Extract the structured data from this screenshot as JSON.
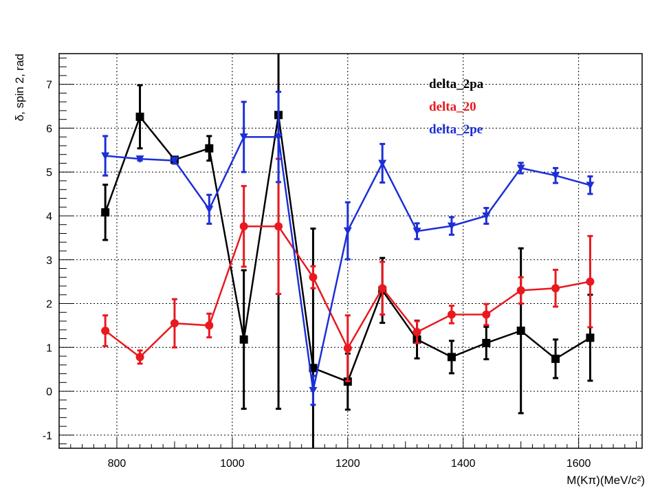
{
  "chart_data": {
    "type": "line",
    "xlabel": "M(Kπ)(MeV/c²)",
    "ylabel": "δ, spin 2, rad",
    "xlim": [
      700,
      1710
    ],
    "ylim": [
      -1.3,
      7.7
    ],
    "grid": true,
    "legend_position": "top-right",
    "x_ticks": [
      "800",
      "1000",
      "1200",
      "1400",
      "1600"
    ],
    "y_ticks": [
      "-1",
      "0",
      "1",
      "2",
      "3",
      "4",
      "5",
      "6",
      "7"
    ],
    "series": [
      {
        "name": "delta_2pa",
        "color": "#000000",
        "marker": "square",
        "x": [
          780,
          840,
          900,
          960,
          1020,
          1080,
          1140,
          1200,
          1260,
          1320,
          1380,
          1440,
          1500,
          1560,
          1620
        ],
        "y": [
          4.08,
          6.26,
          5.28,
          5.54,
          1.18,
          6.3,
          0.53,
          0.22,
          2.3,
          1.18,
          0.78,
          1.1,
          1.38,
          0.74,
          1.22
        ],
        "err": [
          0.63,
          0.72,
          0.05,
          0.28,
          1.58,
          6.7,
          3.18,
          0.64,
          0.74,
          0.43,
          0.37,
          0.37,
          1.88,
          0.44,
          0.98
        ]
      },
      {
        "name": "delta_20",
        "color": "#e8191f",
        "marker": "circle",
        "x": [
          780,
          840,
          900,
          960,
          1020,
          1080,
          1140,
          1200,
          1260,
          1320,
          1380,
          1440,
          1500,
          1560,
          1620
        ],
        "y": [
          1.38,
          0.78,
          1.55,
          1.5,
          3.76,
          3.76,
          2.6,
          0.98,
          2.35,
          1.35,
          1.75,
          1.75,
          2.3,
          2.35,
          2.5
        ],
        "err": [
          0.35,
          0.15,
          0.55,
          0.27,
          0.92,
          1.54,
          0.25,
          0.75,
          0.6,
          0.25,
          0.2,
          0.24,
          0.3,
          0.42,
          1.04
        ]
      },
      {
        "name": "delta_2pe",
        "color": "#1c2fd6",
        "marker": "triangle-down",
        "x": [
          780,
          840,
          900,
          960,
          1020,
          1080,
          1140,
          1200,
          1260,
          1320,
          1380,
          1440,
          1500,
          1560,
          1620
        ],
        "y": [
          5.37,
          5.3,
          5.26,
          4.15,
          5.8,
          5.8,
          0.02,
          3.66,
          5.2,
          3.65,
          3.77,
          4.0,
          5.09,
          4.92,
          4.7
        ],
        "err": [
          0.45,
          0.04,
          0.07,
          0.33,
          0.8,
          1.03,
          0.33,
          0.65,
          0.44,
          0.18,
          0.2,
          0.18,
          0.12,
          0.17,
          0.2
        ]
      }
    ]
  }
}
